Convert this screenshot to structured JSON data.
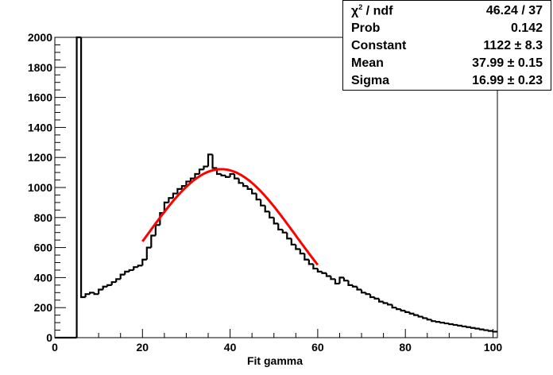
{
  "chart_data": {
    "type": "histogram",
    "xlabel": "Fit gamma",
    "ylabel": "",
    "xlim": [
      0,
      101
    ],
    "ylim": [
      0,
      2000
    ],
    "x_ticks": [
      "0",
      "20",
      "40",
      "60",
      "80",
      "100"
    ],
    "y_ticks": [
      "0",
      "200",
      "400",
      "600",
      "800",
      "1000",
      "1200",
      "1400",
      "1600",
      "1800",
      "2000"
    ],
    "bin_width": 1,
    "bin_start": 0,
    "values": [
      0,
      0,
      0,
      0,
      0,
      2000,
      270,
      290,
      300,
      290,
      320,
      340,
      350,
      370,
      390,
      420,
      440,
      450,
      470,
      480,
      520,
      600,
      680,
      750,
      830,
      900,
      930,
      960,
      990,
      1010,
      1040,
      1060,
      1090,
      1120,
      1140,
      1220,
      1130,
      1090,
      1080,
      1070,
      1090,
      1060,
      1030,
      1010,
      990,
      960,
      920,
      880,
      840,
      800,
      760,
      720,
      700,
      660,
      620,
      590,
      560,
      520,
      490,
      460,
      440,
      430,
      410,
      390,
      360,
      400,
      380,
      350,
      340,
      320,
      300,
      290,
      270,
      260,
      240,
      230,
      220,
      200,
      190,
      180,
      170,
      160,
      150,
      140,
      130,
      120,
      110,
      105,
      100,
      95,
      90,
      85,
      80,
      75,
      70,
      65,
      60,
      55,
      50,
      45,
      40
    ],
    "fit": {
      "color": "#ff0000",
      "xrange": [
        20,
        60
      ],
      "constant": 1122,
      "mean": 37.99,
      "sigma": 16.99
    },
    "stats": [
      {
        "label": "χ",
        "label_sup": "2",
        "label_rest": " / ndf",
        "value": "46.24 / 37"
      },
      {
        "label": "Prob",
        "label_sup": "",
        "label_rest": "",
        "value": "0.142"
      },
      {
        "label": "Constant",
        "label_sup": "",
        "label_rest": "",
        "value": "1122 ± 8.3"
      },
      {
        "label": "Mean",
        "label_sup": "",
        "label_rest": "",
        "value": "37.99 ± 0.15"
      },
      {
        "label": "Sigma",
        "label_sup": "",
        "label_rest": "",
        "value": "16.99 ± 0.23"
      }
    ]
  }
}
